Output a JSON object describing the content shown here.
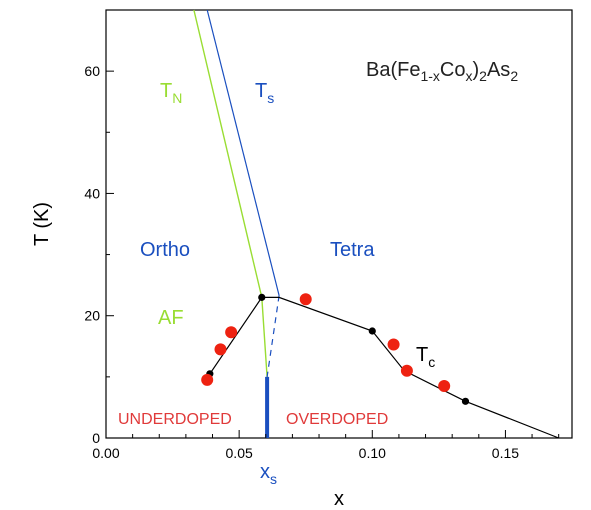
{
  "chart_data": {
    "type": "scatter",
    "title": "",
    "xlabel": "x",
    "ylabel": "T (K)",
    "xlim": [
      0.0,
      0.175
    ],
    "ylim": [
      0,
      70
    ],
    "xticks": [
      "0.00",
      "0.05",
      "0.10",
      "0.15"
    ],
    "yticks": [
      "0",
      "20",
      "40",
      "60"
    ],
    "x_tick_values": [
      0.0,
      0.05,
      0.1,
      0.15
    ],
    "y_tick_values": [
      0,
      20,
      40,
      60
    ],
    "grid": false,
    "colors": {
      "tn_line": "#99dd33",
      "ts_line": "#1a4fbf",
      "region_blue": "#1a4fbf",
      "region_green": "#99dd33",
      "doping_red": "#e03a3a",
      "red_points": "#ee2211",
      "tc_line": "#000000"
    },
    "annotations": {
      "formula": {
        "prefix": "Ba(Fe",
        "sub1": "1-x",
        "mid1": "Co",
        "sub2": "x",
        "mid2": ")",
        "sub3": "2",
        "mid3": "As",
        "sub4": "2"
      },
      "tn": {
        "main": "T",
        "sub": "N"
      },
      "ts": {
        "main": "T",
        "sub": "s"
      },
      "tc": {
        "main": "T",
        "sub": "c"
      },
      "xs": {
        "main": "x",
        "sub": "s"
      },
      "ortho": "Ortho",
      "tetra": "Tetra",
      "af": "AF",
      "underdoped": "UNDERDOPED",
      "overdoped": "OVERDOPED"
    },
    "series": [
      {
        "kind": "line",
        "points": [
          [
            0.033,
            70
          ],
          [
            0.0585,
            23
          ],
          [
            0.0605,
            10
          ]
        ]
      },
      {
        "kind": "line",
        "points": [
          [
            0.038,
            70
          ],
          [
            0.065,
            23.3
          ]
        ]
      },
      {
        "kind": "dashed",
        "points": [
          [
            0.065,
            23.3
          ],
          [
            0.0605,
            10
          ]
        ]
      },
      {
        "kind": "line",
        "points": [
          [
            0.0375,
            9
          ],
          [
            0.039,
            10.5
          ],
          [
            0.0585,
            23
          ],
          [
            0.065,
            23
          ],
          [
            0.1,
            17.5
          ],
          [
            0.112,
            11
          ],
          [
            0.135,
            6
          ],
          [
            0.17,
            0
          ]
        ]
      },
      {
        "kind": "black_points",
        "points": [
          [
            0.039,
            10.5
          ],
          [
            0.047,
            17
          ],
          [
            0.0585,
            23
          ],
          [
            0.1,
            17.5
          ],
          [
            0.135,
            6
          ]
        ]
      },
      {
        "kind": "red_points",
        "points": [
          [
            0.038,
            9.5
          ],
          [
            0.043,
            14.5
          ],
          [
            0.047,
            17.3
          ],
          [
            0.075,
            22.7
          ],
          [
            0.108,
            15.3
          ],
          [
            0.113,
            11
          ],
          [
            0.127,
            8.5
          ]
        ]
      },
      {
        "kind": "thick_bar",
        "points": [
          [
            0.0605,
            0
          ],
          [
            0.0605,
            10
          ]
        ]
      }
    ]
  }
}
